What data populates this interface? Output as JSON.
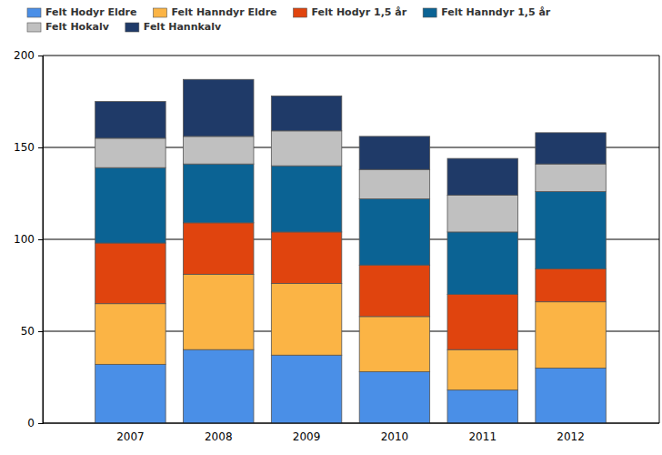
{
  "chart_data": {
    "type": "bar",
    "stacked": true,
    "grid": true,
    "categories": [
      "2007",
      "2008",
      "2009",
      "2010",
      "2011",
      "2012"
    ],
    "series": [
      {
        "name": "Felt Hodyr Eldre",
        "color": "#4a8fe7",
        "values": [
          32,
          40,
          37,
          28,
          18,
          30
        ]
      },
      {
        "name": "Felt Hanndyr Eldre",
        "color": "#fbb445",
        "values": [
          33,
          41,
          39,
          30,
          22,
          36
        ]
      },
      {
        "name": "Felt Hodyr 1,5 år",
        "color": "#e0440e",
        "values": [
          33,
          28,
          28,
          28,
          30,
          18
        ]
      },
      {
        "name": "Felt Hanndyr 1,5 år",
        "color": "#0b6394",
        "values": [
          41,
          32,
          36,
          36,
          34,
          42
        ]
      },
      {
        "name": "Felt Hokalv",
        "color": "#c0c0c0",
        "values": [
          16,
          15,
          19,
          16,
          20,
          15
        ]
      },
      {
        "name": "Felt Hannkalv",
        "color": "#1f3a68",
        "values": [
          20,
          31,
          19,
          18,
          20,
          17
        ]
      }
    ],
    "ylim": [
      0,
      200
    ],
    "yticks": [
      0,
      50,
      100,
      150,
      200
    ]
  }
}
